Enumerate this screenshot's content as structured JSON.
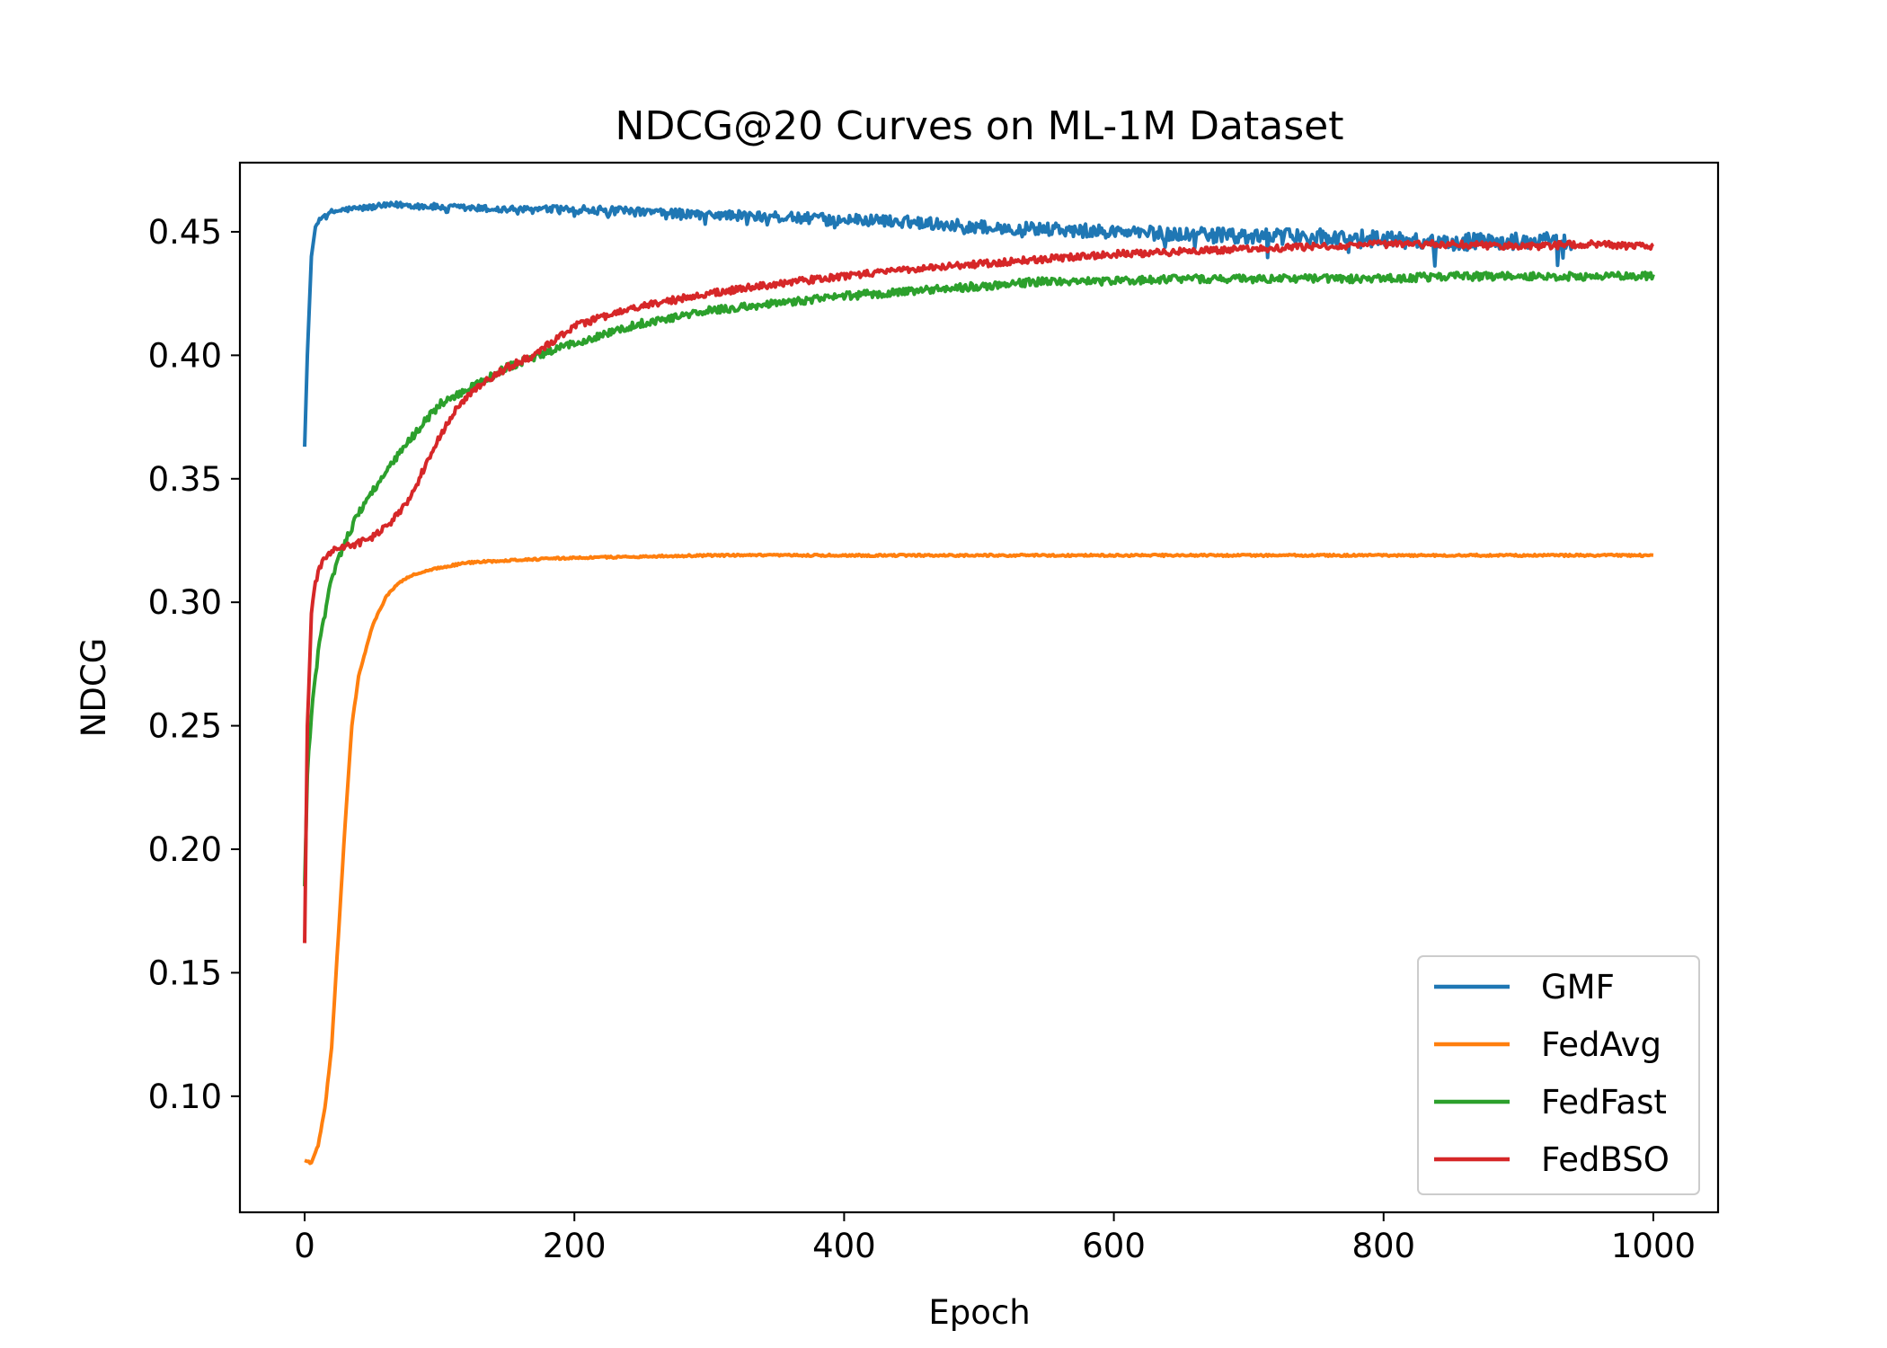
{
  "chart_data": {
    "type": "line",
    "title": "NDCG@20 Curves on ML-1M Dataset",
    "xlabel": "Epoch",
    "ylabel": "NDCG",
    "xlim": [
      -48,
      1048
    ],
    "ylim": [
      0.053,
      0.478
    ],
    "xticks": [
      0,
      200,
      400,
      600,
      800,
      1000
    ],
    "xtick_labels": [
      "0",
      "200",
      "400",
      "600",
      "800",
      "1000"
    ],
    "yticks": [
      0.1,
      0.15,
      0.2,
      0.25,
      0.3,
      0.35,
      0.4,
      0.45
    ],
    "ytick_labels": [
      "0.10",
      "0.15",
      "0.20",
      "0.25",
      "0.30",
      "0.35",
      "0.40",
      "0.45"
    ],
    "grid": false,
    "legend_position": "lower-right",
    "series": [
      {
        "name": "GMF",
        "color": "#1f77b4",
        "noise": 0.006,
        "x": [
          0,
          2,
          5,
          8,
          12,
          20,
          30,
          50,
          70,
          100,
          150,
          200,
          250,
          300,
          350,
          400,
          450,
          500,
          550,
          600,
          650,
          700,
          750,
          800,
          850,
          900,
          940
        ],
        "y": [
          0.363,
          0.4,
          0.44,
          0.452,
          0.456,
          0.458,
          0.459,
          0.46,
          0.461,
          0.46,
          0.459,
          0.459,
          0.458,
          0.457,
          0.456,
          0.455,
          0.454,
          0.452,
          0.451,
          0.45,
          0.449,
          0.448,
          0.448,
          0.447,
          0.446,
          0.446,
          0.446
        ]
      },
      {
        "name": "FedAvg",
        "color": "#ff7f0e",
        "noise": 0.0004,
        "x": [
          0,
          5,
          10,
          15,
          20,
          25,
          30,
          35,
          40,
          50,
          60,
          70,
          80,
          100,
          120,
          150,
          200,
          300,
          400,
          500,
          600,
          700,
          800,
          900,
          1000
        ],
        "y": [
          0.074,
          0.073,
          0.08,
          0.095,
          0.12,
          0.165,
          0.21,
          0.25,
          0.27,
          0.29,
          0.302,
          0.308,
          0.311,
          0.314,
          0.316,
          0.317,
          0.318,
          0.319,
          0.319,
          0.319,
          0.319,
          0.319,
          0.319,
          0.319,
          0.319
        ]
      },
      {
        "name": "FedFast",
        "color": "#2ca02c",
        "noise": 0.0016,
        "x": [
          0,
          2,
          5,
          10,
          20,
          30,
          40,
          50,
          60,
          70,
          80,
          90,
          100,
          120,
          150,
          200,
          250,
          300,
          350,
          400,
          450,
          500,
          550,
          600,
          650,
          700,
          750,
          800,
          850,
          900,
          950,
          1000
        ],
        "y": [
          0.185,
          0.23,
          0.255,
          0.28,
          0.31,
          0.325,
          0.336,
          0.345,
          0.352,
          0.36,
          0.367,
          0.374,
          0.38,
          0.386,
          0.395,
          0.405,
          0.413,
          0.418,
          0.421,
          0.424,
          0.426,
          0.428,
          0.43,
          0.43,
          0.431,
          0.431,
          0.431,
          0.431,
          0.432,
          0.432,
          0.432,
          0.432
        ]
      },
      {
        "name": "FedBSO",
        "color": "#d62728",
        "noise": 0.0014,
        "x": [
          0,
          2,
          5,
          8,
          12,
          18,
          25,
          35,
          45,
          55,
          65,
          75,
          85,
          95,
          105,
          115,
          130,
          150,
          170,
          200,
          250,
          300,
          350,
          400,
          450,
          500,
          550,
          600,
          650,
          700,
          750,
          800,
          850,
          900,
          950,
          1000
        ],
        "y": [
          0.162,
          0.25,
          0.295,
          0.308,
          0.315,
          0.32,
          0.322,
          0.323,
          0.325,
          0.328,
          0.333,
          0.34,
          0.35,
          0.362,
          0.372,
          0.38,
          0.388,
          0.395,
          0.4,
          0.412,
          0.42,
          0.425,
          0.429,
          0.432,
          0.435,
          0.437,
          0.439,
          0.441,
          0.442,
          0.443,
          0.444,
          0.445,
          0.445,
          0.444,
          0.445,
          0.444
        ]
      }
    ]
  }
}
